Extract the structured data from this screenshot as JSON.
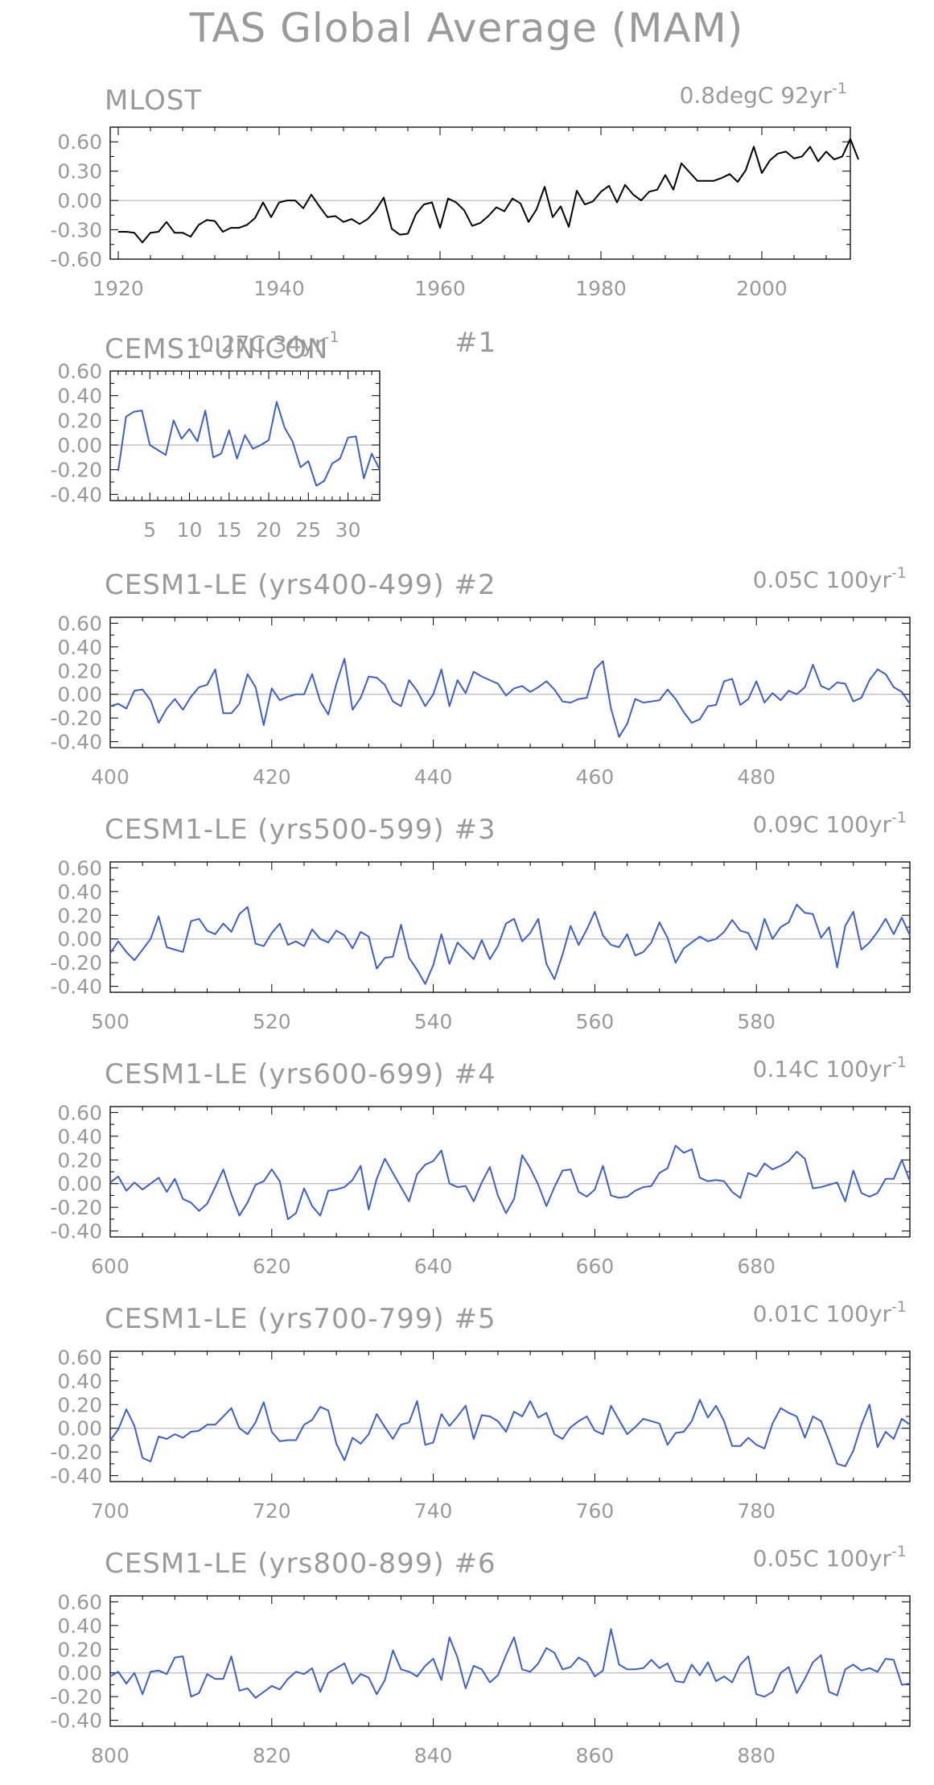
{
  "title": "TAS Global Average (MAM)",
  "chart_data": [
    {
      "type": "line",
      "title": "MLOST",
      "trend_value": "0.8degC 92yr",
      "trend_exp": "-1",
      "color": "#000000",
      "x_start": 1920,
      "xlim": [
        1919,
        2011
      ],
      "ylim": [
        -0.6,
        0.75
      ],
      "yticks": [
        "0.60",
        "0.30",
        "0.00",
        "-0.30",
        "-0.60"
      ],
      "ytick_values": [
        0.6,
        0.3,
        0.0,
        -0.3,
        -0.6
      ],
      "xticks": [
        "1920",
        "1940",
        "1960",
        "1980",
        "2000"
      ],
      "xtick_values": [
        1920,
        1940,
        1960,
        1980,
        2000
      ],
      "values": [
        -0.32,
        -0.32,
        -0.33,
        -0.43,
        -0.33,
        -0.32,
        -0.22,
        -0.33,
        -0.33,
        -0.37,
        -0.25,
        -0.2,
        -0.21,
        -0.32,
        -0.28,
        -0.28,
        -0.25,
        -0.18,
        -0.02,
        -0.17,
        -0.02,
        0.0,
        0.0,
        -0.08,
        0.06,
        -0.06,
        -0.17,
        -0.16,
        -0.22,
        -0.19,
        -0.24,
        -0.19,
        -0.1,
        0.03,
        -0.29,
        -0.35,
        -0.34,
        -0.14,
        -0.04,
        -0.02,
        -0.28,
        0.02,
        -0.02,
        -0.1,
        -0.26,
        -0.23,
        -0.16,
        -0.07,
        -0.11,
        0.02,
        -0.03,
        -0.22,
        -0.09,
        0.14,
        -0.17,
        -0.06,
        -0.27,
        0.1,
        -0.04,
        -0.01,
        0.09,
        0.15,
        -0.02,
        0.16,
        0.06,
        0.0,
        0.09,
        0.11,
        0.26,
        0.11,
        0.38,
        0.29,
        0.2,
        0.2,
        0.2,
        0.23,
        0.27,
        0.19,
        0.31,
        0.55,
        0.28,
        0.41,
        0.48,
        0.5,
        0.43,
        0.45,
        0.55,
        0.4,
        0.5,
        0.42,
        0.45,
        0.63,
        0.42
      ]
    },
    {
      "type": "line",
      "title": "CEMS1-UNICON",
      "overlap_label": "-0.27C 34yr",
      "overlap_exp": "-1",
      "number_label": "#1",
      "color": "#3d5fd0",
      "x_start": 1,
      "xlim": [
        0,
        34
      ],
      "ylim": [
        -0.45,
        0.6
      ],
      "yticks": [
        "0.60",
        "0.40",
        "0.20",
        "0.00",
        "-0.20",
        "-0.40"
      ],
      "ytick_values": [
        0.6,
        0.4,
        0.2,
        0.0,
        -0.2,
        -0.4
      ],
      "xticks": [
        "5",
        "10",
        "15",
        "20",
        "25",
        "30"
      ],
      "xtick_values": [
        5,
        10,
        15,
        20,
        25,
        30
      ],
      "values": [
        -0.21,
        0.23,
        0.27,
        0.28,
        0.0,
        -0.04,
        -0.08,
        0.2,
        0.05,
        0.13,
        0.03,
        0.28,
        -0.1,
        -0.07,
        0.12,
        -0.11,
        0.08,
        -0.03,
        0.0,
        0.04,
        0.35,
        0.14,
        0.03,
        -0.18,
        -0.13,
        -0.33,
        -0.29,
        -0.15,
        -0.11,
        0.06,
        0.07,
        -0.27,
        -0.07,
        -0.2
      ]
    },
    {
      "type": "line",
      "title": "CESM1-LE (yrs400-499) #2",
      "trend_value": "0.05C 100yr",
      "trend_exp": "-1",
      "color": "#3d5fd0",
      "x_start": 400,
      "xlim": [
        400,
        499
      ],
      "ylim": [
        -0.45,
        0.65
      ],
      "yticks": [
        "0.60",
        "0.40",
        "0.20",
        "0.00",
        "-0.20",
        "-0.40"
      ],
      "ytick_values": [
        0.6,
        0.4,
        0.2,
        0.0,
        -0.2,
        -0.4
      ],
      "xticks": [
        "400",
        "420",
        "440",
        "460",
        "480"
      ],
      "xtick_values": [
        400,
        420,
        440,
        460,
        480
      ],
      "values": [
        -0.1,
        -0.08,
        -0.12,
        0.03,
        0.04,
        -0.05,
        -0.24,
        -0.12,
        -0.04,
        -0.13,
        -0.02,
        0.06,
        0.08,
        0.21,
        -0.16,
        -0.16,
        -0.08,
        0.17,
        0.06,
        -0.26,
        0.05,
        -0.05,
        -0.02,
        0.0,
        0.0,
        0.17,
        -0.06,
        -0.17,
        0.09,
        0.3,
        -0.13,
        -0.03,
        0.15,
        0.14,
        0.08,
        -0.06,
        -0.1,
        0.12,
        0.03,
        -0.1,
        0.0,
        0.21,
        -0.1,
        0.12,
        0.01,
        0.19,
        0.15,
        0.12,
        0.09,
        -0.01,
        0.05,
        0.07,
        0.02,
        0.06,
        0.11,
        0.04,
        -0.06,
        -0.07,
        -0.04,
        -0.03,
        0.21,
        0.28,
        -0.12,
        -0.36,
        -0.25,
        -0.04,
        -0.07,
        -0.06,
        -0.05,
        0.04,
        -0.04,
        -0.15,
        -0.24,
        -0.21,
        -0.1,
        -0.09,
        0.11,
        0.13,
        -0.09,
        -0.04,
        0.11,
        -0.07,
        0.01,
        -0.05,
        0.03,
        0.0,
        0.06,
        0.25,
        0.07,
        0.04,
        0.1,
        0.09,
        -0.06,
        -0.03,
        0.12,
        0.21,
        0.17,
        0.06,
        0.02,
        -0.08
      ]
    },
    {
      "type": "line",
      "title": "CESM1-LE (yrs500-599) #3",
      "trend_value": "0.09C 100yr",
      "trend_exp": "-1",
      "color": "#3d5fd0",
      "x_start": 500,
      "xlim": [
        500,
        599
      ],
      "ylim": [
        -0.45,
        0.65
      ],
      "yticks": [
        "0.60",
        "0.40",
        "0.20",
        "0.00",
        "-0.20",
        "-0.40"
      ],
      "ytick_values": [
        0.6,
        0.4,
        0.2,
        0.0,
        -0.2,
        -0.4
      ],
      "xticks": [
        "500",
        "520",
        "540",
        "560",
        "580"
      ],
      "xtick_values": [
        500,
        520,
        540,
        560,
        580
      ],
      "values": [
        -0.12,
        -0.02,
        -0.11,
        -0.18,
        -0.09,
        0.0,
        0.19,
        -0.07,
        -0.09,
        -0.11,
        0.15,
        0.17,
        0.07,
        0.04,
        0.13,
        0.06,
        0.21,
        0.27,
        -0.04,
        -0.06,
        0.05,
        0.13,
        -0.05,
        -0.02,
        -0.06,
        0.08,
        0.0,
        -0.03,
        0.07,
        0.03,
        -0.08,
        0.06,
        0.02,
        -0.25,
        -0.16,
        -0.15,
        0.12,
        -0.16,
        -0.26,
        -0.38,
        -0.22,
        0.04,
        -0.21,
        -0.03,
        -0.1,
        -0.17,
        -0.01,
        -0.17,
        -0.06,
        0.13,
        0.17,
        -0.02,
        0.05,
        0.17,
        -0.21,
        -0.34,
        -0.13,
        0.11,
        -0.05,
        0.08,
        0.23,
        0.03,
        -0.05,
        -0.07,
        0.04,
        -0.14,
        -0.11,
        -0.03,
        0.14,
        0.01,
        -0.2,
        -0.08,
        -0.03,
        0.02,
        -0.02,
        0.0,
        0.06,
        0.16,
        0.07,
        0.05,
        -0.09,
        0.17,
        0.0,
        0.1,
        0.14,
        0.29,
        0.22,
        0.21,
        0.01,
        0.1,
        -0.24,
        0.11,
        0.23,
        -0.09,
        -0.03,
        0.06,
        0.17,
        0.04,
        0.18,
        0.03
      ]
    },
    {
      "type": "line",
      "title": "CESM1-LE (yrs600-699) #4",
      "trend_value": "0.14C 100yr",
      "trend_exp": "-1",
      "color": "#3d5fd0",
      "x_start": 600,
      "xlim": [
        600,
        699
      ],
      "ylim": [
        -0.45,
        0.65
      ],
      "yticks": [
        "0.60",
        "0.40",
        "0.20",
        "0.00",
        "-0.20",
        "-0.40"
      ],
      "ytick_values": [
        0.6,
        0.4,
        0.2,
        0.0,
        -0.2,
        -0.4
      ],
      "xticks": [
        "600",
        "620",
        "640",
        "660",
        "680"
      ],
      "xtick_values": [
        600,
        620,
        640,
        660,
        680
      ],
      "values": [
        0.01,
        0.06,
        -0.06,
        0.01,
        -0.05,
        0.0,
        0.05,
        -0.07,
        0.04,
        -0.13,
        -0.16,
        -0.23,
        -0.17,
        -0.03,
        0.12,
        -0.09,
        -0.27,
        -0.16,
        -0.01,
        0.02,
        0.12,
        0.02,
        -0.3,
        -0.25,
        -0.04,
        -0.19,
        -0.27,
        -0.06,
        -0.05,
        -0.03,
        0.03,
        0.15,
        -0.22,
        0.04,
        0.21,
        0.09,
        -0.03,
        -0.15,
        0.08,
        0.16,
        0.19,
        0.28,
        0.0,
        -0.03,
        -0.02,
        -0.15,
        0.01,
        0.14,
        -0.1,
        -0.25,
        -0.13,
        0.24,
        0.13,
        -0.01,
        -0.19,
        -0.03,
        0.11,
        0.12,
        -0.07,
        -0.11,
        -0.05,
        0.15,
        -0.1,
        -0.12,
        -0.11,
        -0.06,
        -0.03,
        -0.02,
        0.09,
        0.13,
        0.32,
        0.26,
        0.29,
        0.05,
        0.02,
        0.03,
        0.02,
        -0.07,
        -0.12,
        0.09,
        0.06,
        0.17,
        0.12,
        0.15,
        0.19,
        0.27,
        0.21,
        -0.04,
        -0.03,
        -0.01,
        0.01,
        -0.15,
        0.11,
        -0.08,
        -0.11,
        -0.08,
        0.04,
        0.04,
        0.2,
        0.02
      ]
    },
    {
      "type": "line",
      "title": "CESM1-LE (yrs700-799) #5",
      "trend_value": "0.01C 100yr",
      "trend_exp": "-1",
      "color": "#3d5fd0",
      "x_start": 700,
      "xlim": [
        700,
        799
      ],
      "ylim": [
        -0.45,
        0.65
      ],
      "yticks": [
        "0.60",
        "0.40",
        "0.20",
        "0.00",
        "-0.20",
        "-0.40"
      ],
      "ytick_values": [
        0.6,
        0.4,
        0.2,
        0.0,
        -0.2,
        -0.4
      ],
      "xticks": [
        "700",
        "720",
        "740",
        "760",
        "780"
      ],
      "xtick_values": [
        700,
        720,
        740,
        760,
        780
      ],
      "values": [
        -0.1,
        -0.01,
        0.16,
        0.02,
        -0.25,
        -0.28,
        -0.07,
        -0.09,
        -0.05,
        -0.08,
        -0.03,
        -0.02,
        0.03,
        0.03,
        0.1,
        0.17,
        0.0,
        -0.05,
        0.05,
        0.22,
        -0.03,
        -0.11,
        -0.1,
        -0.1,
        0.03,
        0.07,
        0.18,
        0.15,
        -0.13,
        -0.27,
        -0.08,
        -0.13,
        -0.05,
        0.12,
        0.01,
        -0.09,
        0.03,
        0.05,
        0.23,
        -0.14,
        -0.12,
        0.12,
        0.02,
        0.1,
        0.19,
        -0.09,
        0.11,
        0.1,
        0.06,
        -0.03,
        0.14,
        0.1,
        0.23,
        0.09,
        0.13,
        -0.05,
        -0.09,
        0.01,
        0.06,
        0.1,
        -0.02,
        -0.05,
        0.19,
        0.07,
        -0.05,
        0.01,
        0.08,
        0.06,
        0.04,
        -0.14,
        -0.04,
        -0.03,
        0.06,
        0.24,
        0.09,
        0.19,
        0.06,
        -0.15,
        -0.15,
        -0.08,
        -0.14,
        -0.17,
        0.04,
        0.17,
        0.13,
        0.1,
        -0.08,
        0.1,
        0.06,
        -0.11,
        -0.3,
        -0.32,
        -0.19,
        0.03,
        0.2,
        -0.16,
        -0.03,
        -0.09,
        0.08,
        0.03
      ]
    },
    {
      "type": "line",
      "title": "CESM1-LE (yrs800-899) #6",
      "trend_value": "0.05C 100yr",
      "trend_exp": "-1",
      "color": "#3d5fd0",
      "x_start": 800,
      "xlim": [
        800,
        899
      ],
      "ylim": [
        -0.45,
        0.65
      ],
      "yticks": [
        "0.60",
        "0.40",
        "0.20",
        "0.00",
        "-0.20",
        "-0.40"
      ],
      "ytick_values": [
        0.6,
        0.4,
        0.2,
        0.0,
        -0.2,
        -0.4
      ],
      "xticks": [
        "800",
        "820",
        "840",
        "860",
        "880"
      ],
      "xtick_values": [
        800,
        820,
        840,
        860,
        880
      ],
      "values": [
        -0.03,
        0.01,
        -0.09,
        0.0,
        -0.18,
        0.01,
        0.02,
        -0.01,
        0.13,
        0.14,
        -0.2,
        -0.17,
        -0.01,
        -0.05,
        -0.05,
        0.14,
        -0.15,
        -0.13,
        -0.21,
        -0.16,
        -0.11,
        -0.14,
        -0.05,
        0.01,
        -0.01,
        0.04,
        -0.16,
        0.0,
        0.04,
        0.08,
        -0.09,
        -0.01,
        -0.04,
        -0.18,
        -0.06,
        0.19,
        0.03,
        0.01,
        -0.03,
        0.06,
        0.12,
        -0.06,
        0.3,
        0.13,
        -0.13,
        0.06,
        0.03,
        -0.08,
        -0.02,
        0.15,
        0.3,
        0.03,
        0.01,
        0.08,
        0.21,
        0.17,
        0.03,
        0.05,
        0.13,
        0.09,
        -0.03,
        0.02,
        0.37,
        0.07,
        0.03,
        0.03,
        0.04,
        0.11,
        0.04,
        0.08,
        -0.07,
        -0.08,
        0.07,
        -0.02,
        0.09,
        -0.07,
        -0.03,
        -0.08,
        0.07,
        0.14,
        -0.18,
        -0.2,
        -0.16,
        0.0,
        0.05,
        -0.17,
        -0.05,
        0.09,
        0.15,
        -0.16,
        -0.19,
        0.03,
        0.07,
        0.02,
        0.04,
        0.01,
        0.12,
        0.11,
        -0.1,
        -0.09
      ]
    }
  ]
}
